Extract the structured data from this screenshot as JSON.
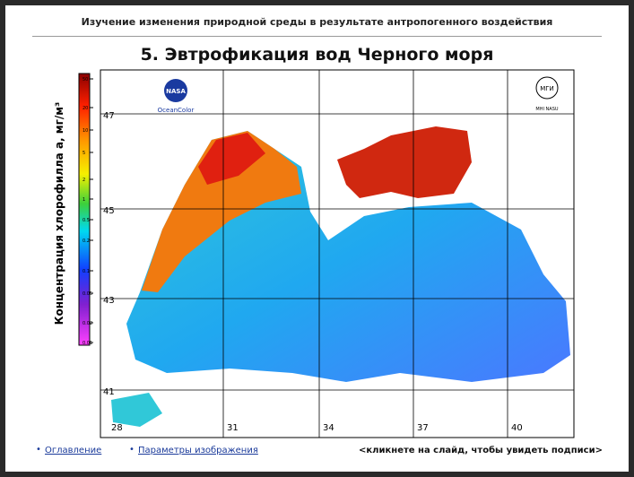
{
  "header": {
    "top_text": "Изучение изменения природной среды в результате антропогенного воздействия",
    "title": "5. Эвтрофикация вод Черного моря"
  },
  "map": {
    "lat_labels": [
      "47",
      "45",
      "43",
      "41"
    ],
    "lon_labels": [
      "28",
      "31",
      "34",
      "37",
      "40"
    ],
    "colorbar_label": "Концентрация хлорофилла а, мг/м³",
    "colorbar_ticks": [
      "50",
      "20",
      "10",
      "5",
      "2",
      "1",
      "0.5",
      "0.2",
      "0.1",
      "0.05",
      "0.02",
      "0.01"
    ],
    "nasa_logo": "NASA",
    "nasa_caption": "OceanColor",
    "mhi_logo": "МГИ",
    "mhi_caption": "MHI NASU"
  },
  "footer": {
    "link1": "Оглавление",
    "link2": "Параметры изображения",
    "hint": "<кликнете на слайд, чтобы увидеть подписи>"
  }
}
